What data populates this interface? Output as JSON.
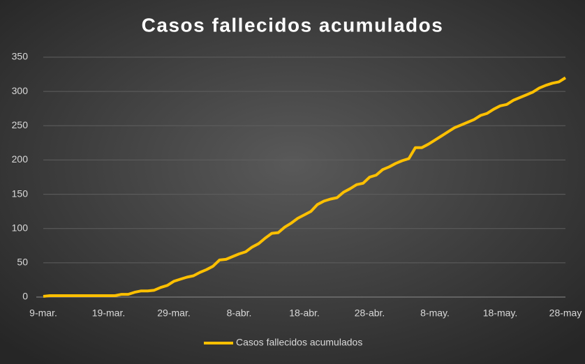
{
  "chart_data": {
    "type": "line",
    "title": "Casos fallecidos acumulados",
    "categories": [
      "9-mar.",
      null,
      null,
      null,
      null,
      null,
      null,
      null,
      null,
      null,
      "19-mar.",
      null,
      null,
      null,
      null,
      null,
      null,
      null,
      null,
      null,
      "29-mar.",
      null,
      null,
      null,
      null,
      null,
      null,
      null,
      null,
      null,
      "8-abr.",
      null,
      null,
      null,
      null,
      null,
      null,
      null,
      null,
      null,
      "18-abr.",
      null,
      null,
      null,
      null,
      null,
      null,
      null,
      null,
      null,
      "28-abr.",
      null,
      null,
      null,
      null,
      null,
      null,
      null,
      null,
      null,
      "8-may.",
      null,
      null,
      null,
      null,
      null,
      null,
      null,
      null,
      null,
      "18-may.",
      null,
      null,
      null,
      null,
      null,
      null,
      null,
      null,
      null,
      "28-may"
    ],
    "series": [
      {
        "name": "Casos fallecidos acumulados",
        "color": "#ffc000",
        "values": [
          1,
          2,
          2,
          2,
          2,
          2,
          2,
          2,
          2,
          2,
          2,
          2,
          4,
          4,
          7,
          9,
          9,
          10,
          14,
          17,
          23,
          26,
          29,
          31,
          36,
          40,
          45,
          54,
          55,
          59,
          63,
          66,
          73,
          78,
          86,
          93,
          94,
          102,
          108,
          115,
          120,
          125,
          135,
          140,
          143,
          145,
          153,
          158,
          164,
          166,
          175,
          178,
          186,
          190,
          195,
          199,
          202,
          218,
          218,
          223,
          229,
          235,
          241,
          247,
          251,
          255,
          259,
          265,
          268,
          274,
          279,
          281,
          287,
          291,
          295,
          299,
          305,
          309,
          312,
          314,
          320
        ]
      }
    ],
    "ylim": [
      0,
      350
    ],
    "yticks": [
      0,
      50,
      100,
      150,
      200,
      250,
      300,
      350
    ],
    "grid": true,
    "legend": "bottom"
  }
}
